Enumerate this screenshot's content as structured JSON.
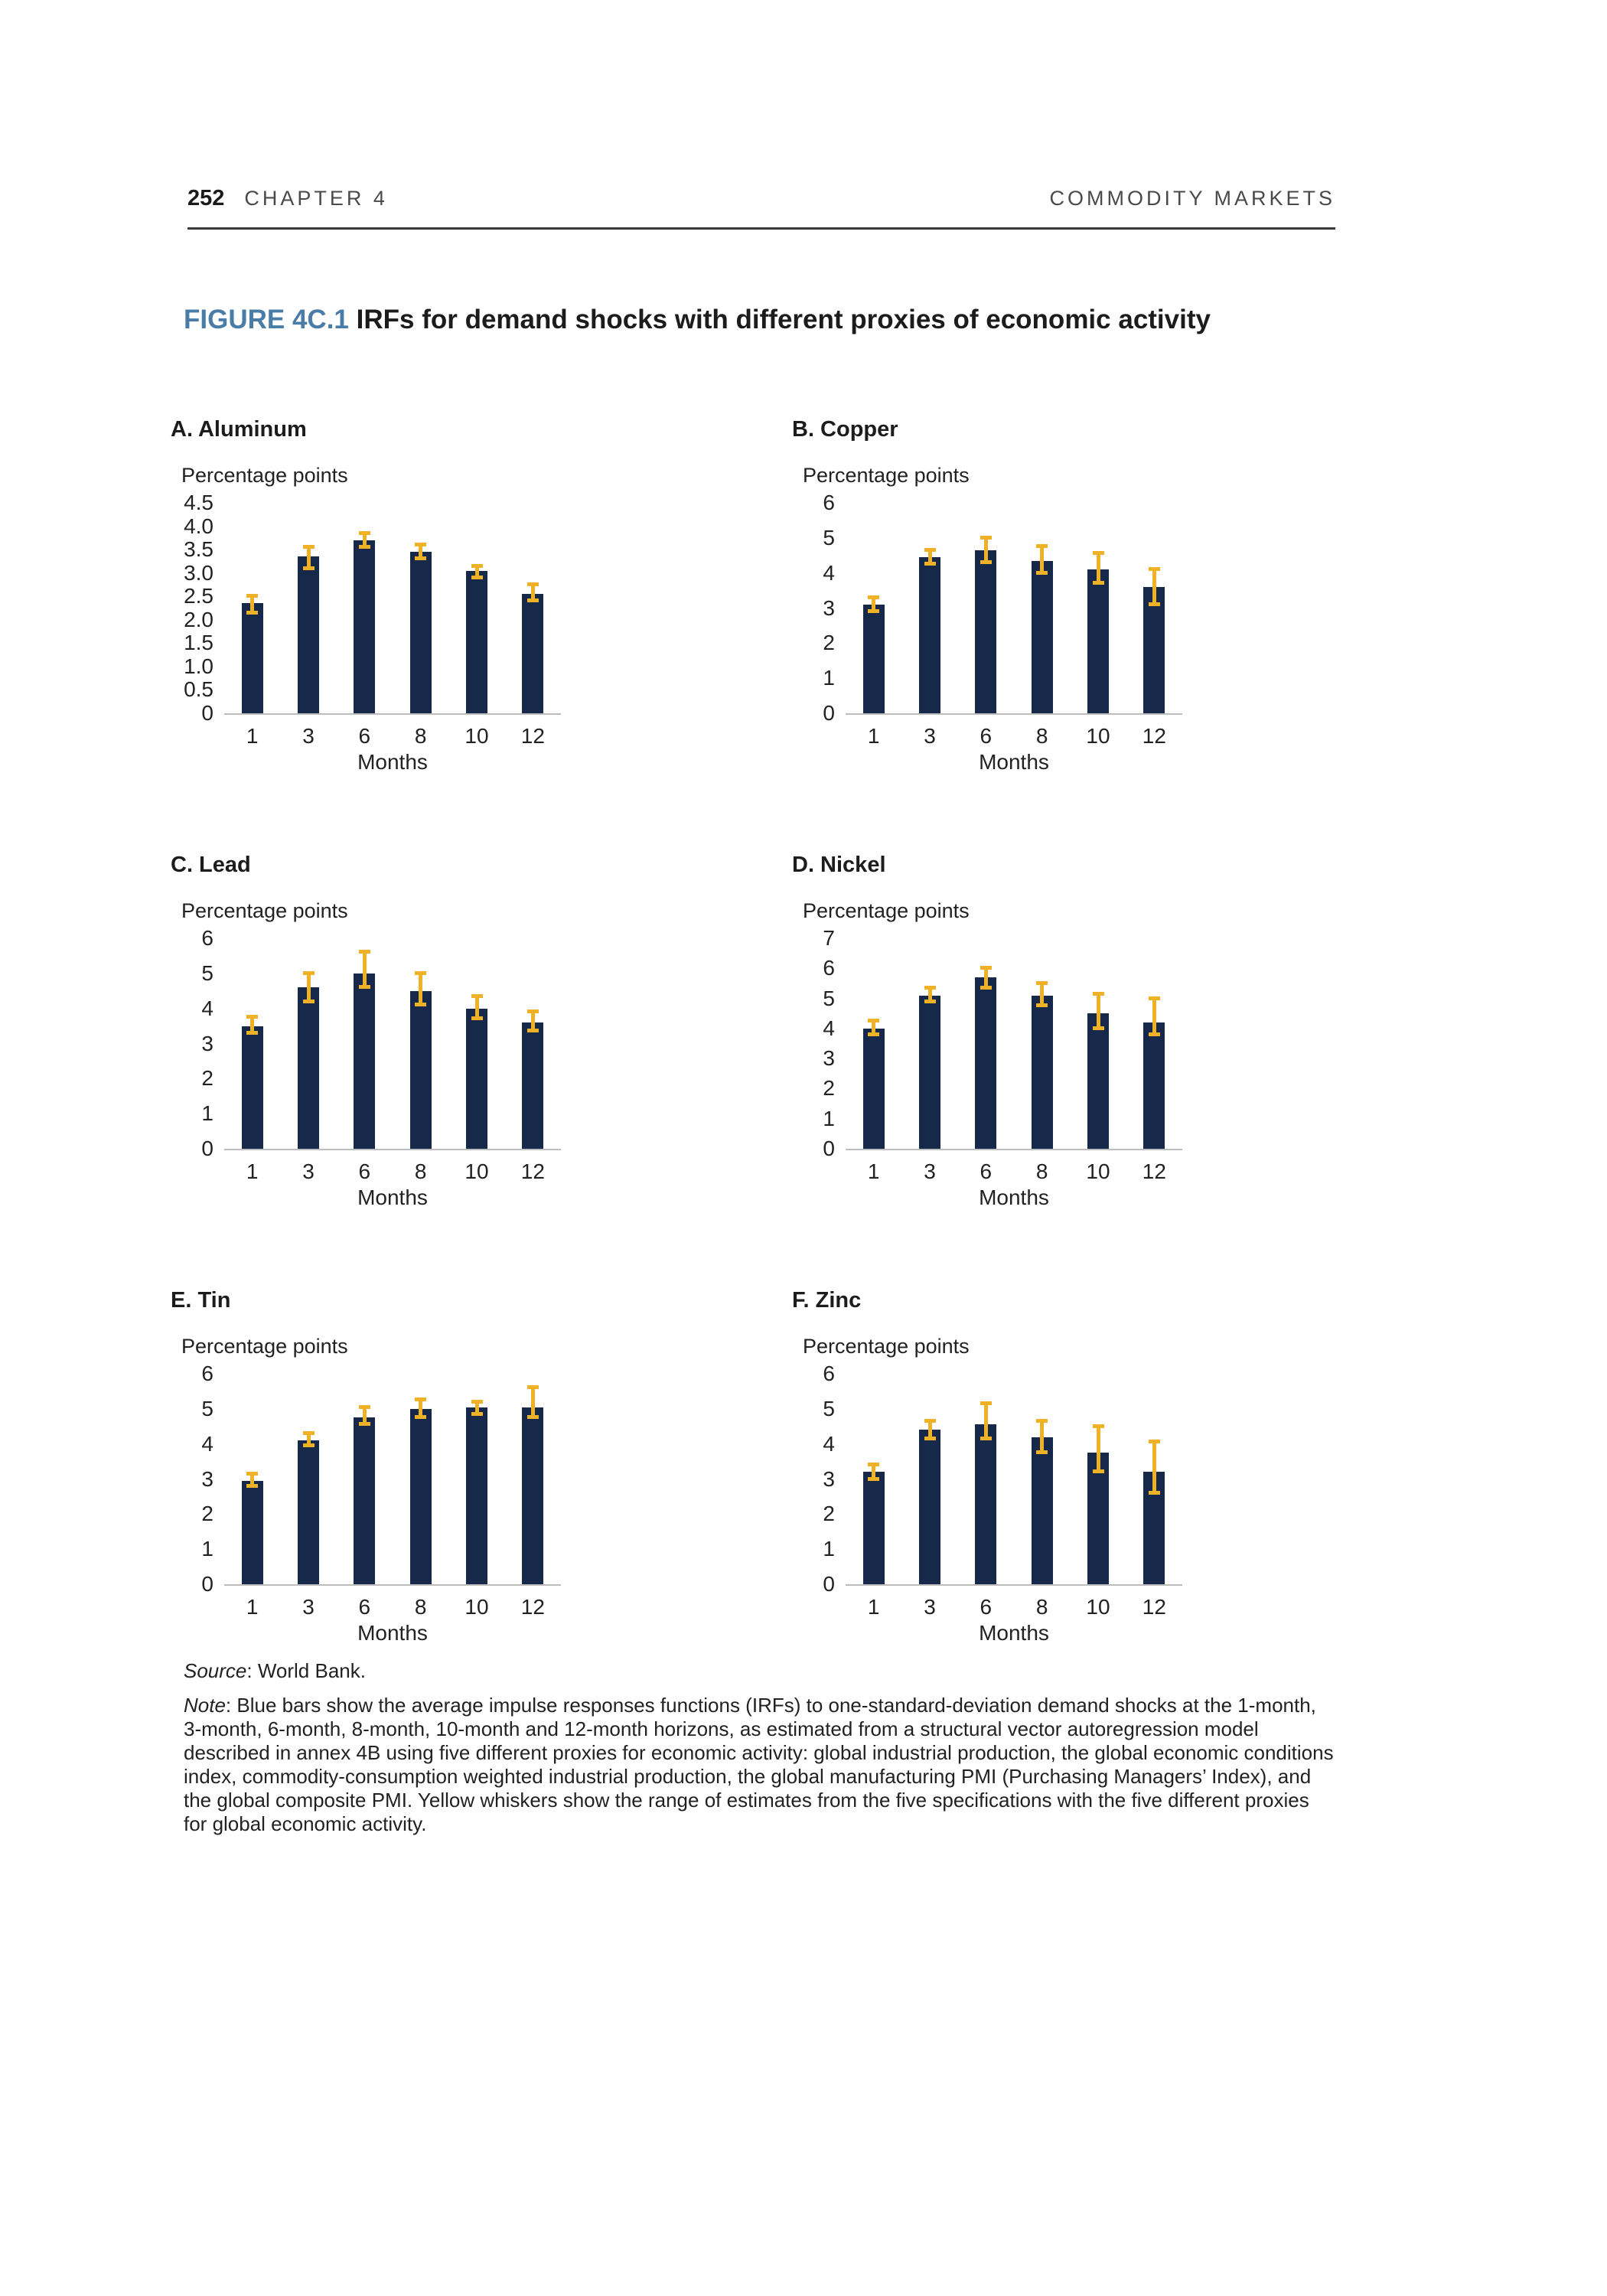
{
  "header": {
    "page_number": "252",
    "chapter": "CHAPTER 4",
    "running_title": "COMMODITY MARKETS"
  },
  "figure": {
    "label": "FIGURE 4C.1",
    "title": "IRFs for demand shocks with different proxies of economic activity"
  },
  "colors": {
    "bar": "#16294a",
    "whisker": "#efb226",
    "accent": "#4a7ca8",
    "axis_line": "#bdbdbd"
  },
  "chart_data": [
    {
      "type": "bar",
      "panel": "A. Aluminum",
      "ylabel": "Percentage points",
      "xlabel": "Months",
      "categories": [
        "1",
        "3",
        "6",
        "8",
        "10",
        "12"
      ],
      "values": [
        2.35,
        3.35,
        3.7,
        3.45,
        3.05,
        2.55
      ],
      "whisker_low": [
        2.15,
        3.1,
        3.55,
        3.3,
        2.9,
        2.4
      ],
      "whisker_high": [
        2.5,
        3.55,
        3.85,
        3.6,
        3.15,
        2.75
      ],
      "ylim": [
        0,
        4.5
      ],
      "yticks": [
        [
          "0",
          0
        ],
        [
          "0.5",
          0.5
        ],
        [
          "1.0",
          1
        ],
        [
          "1.5",
          1.5
        ],
        [
          "2.0",
          2
        ],
        [
          "2.5",
          2.5
        ],
        [
          "3.0",
          3
        ],
        [
          "3.5",
          3.5
        ],
        [
          "4.0",
          4
        ],
        [
          "4.5",
          4.5
        ]
      ],
      "grid": false,
      "legend": "none"
    },
    {
      "type": "bar",
      "panel": "B. Copper",
      "ylabel": "Percentage points",
      "xlabel": "Months",
      "categories": [
        "1",
        "3",
        "6",
        "8",
        "10",
        "12"
      ],
      "values": [
        3.1,
        4.45,
        4.65,
        4.35,
        4.1,
        3.6
      ],
      "whisker_low": [
        2.9,
        4.25,
        4.3,
        4.0,
        3.7,
        3.1
      ],
      "whisker_high": [
        3.3,
        4.65,
        5.0,
        4.75,
        4.55,
        4.1
      ],
      "ylim": [
        0,
        6
      ],
      "yticks": [
        [
          "0",
          0
        ],
        [
          "1",
          1
        ],
        [
          "2",
          2
        ],
        [
          "3",
          3
        ],
        [
          "4",
          4
        ],
        [
          "5",
          5
        ],
        [
          "6",
          6
        ]
      ],
      "grid": false,
      "legend": "none"
    },
    {
      "type": "bar",
      "panel": "C. Lead",
      "ylabel": "Percentage points",
      "xlabel": "Months",
      "categories": [
        "1",
        "3",
        "6",
        "8",
        "10",
        "12"
      ],
      "values": [
        3.5,
        4.6,
        5.0,
        4.5,
        4.0,
        3.6
      ],
      "whisker_low": [
        3.3,
        4.2,
        4.6,
        4.1,
        3.7,
        3.35
      ],
      "whisker_high": [
        3.75,
        5.0,
        5.6,
        5.0,
        4.35,
        3.9
      ],
      "ylim": [
        0,
        6
      ],
      "yticks": [
        [
          "0",
          0
        ],
        [
          "1",
          1
        ],
        [
          "2",
          2
        ],
        [
          "3",
          3
        ],
        [
          "4",
          4
        ],
        [
          "5",
          5
        ],
        [
          "6",
          6
        ]
      ],
      "grid": false,
      "legend": "none"
    },
    {
      "type": "bar",
      "panel": "D. Nickel",
      "ylabel": "Percentage points",
      "xlabel": "Months",
      "categories": [
        "1",
        "3",
        "6",
        "8",
        "10",
        "12"
      ],
      "values": [
        4.0,
        5.1,
        5.7,
        5.1,
        4.5,
        4.2
      ],
      "whisker_low": [
        3.8,
        4.9,
        5.35,
        4.75,
        4.0,
        3.8
      ],
      "whisker_high": [
        4.25,
        5.35,
        6.0,
        5.5,
        5.15,
        5.0
      ],
      "ylim": [
        0,
        7
      ],
      "yticks": [
        [
          "0",
          0
        ],
        [
          "1",
          1
        ],
        [
          "2",
          2
        ],
        [
          "3",
          3
        ],
        [
          "4",
          4
        ],
        [
          "5",
          5
        ],
        [
          "6",
          6
        ],
        [
          "7",
          7
        ]
      ],
      "grid": false,
      "legend": "none"
    },
    {
      "type": "bar",
      "panel": "E. Tin",
      "ylabel": "Percentage points",
      "xlabel": "Months",
      "categories": [
        "1",
        "3",
        "6",
        "8",
        "10",
        "12"
      ],
      "values": [
        2.95,
        4.1,
        4.75,
        5.0,
        5.05,
        5.05
      ],
      "whisker_low": [
        2.8,
        3.95,
        4.55,
        4.75,
        4.85,
        4.75
      ],
      "whisker_high": [
        3.15,
        4.3,
        5.05,
        5.25,
        5.2,
        5.6
      ],
      "ylim": [
        0,
        6
      ],
      "yticks": [
        [
          "0",
          0
        ],
        [
          "1",
          1
        ],
        [
          "2",
          2
        ],
        [
          "3",
          3
        ],
        [
          "4",
          4
        ],
        [
          "5",
          5
        ],
        [
          "6",
          6
        ]
      ],
      "grid": false,
      "legend": "none"
    },
    {
      "type": "bar",
      "panel": "F. Zinc",
      "ylabel": "Percentage points",
      "xlabel": "Months",
      "categories": [
        "1",
        "3",
        "6",
        "8",
        "10",
        "12"
      ],
      "values": [
        3.2,
        4.4,
        4.55,
        4.2,
        3.75,
        3.2
      ],
      "whisker_low": [
        3.0,
        4.15,
        4.15,
        3.75,
        3.2,
        2.6
      ],
      "whisker_high": [
        3.4,
        4.65,
        5.15,
        4.65,
        4.5,
        4.05
      ],
      "ylim": [
        0,
        6
      ],
      "yticks": [
        [
          "0",
          0
        ],
        [
          "1",
          1
        ],
        [
          "2",
          2
        ],
        [
          "3",
          3
        ],
        [
          "4",
          4
        ],
        [
          "5",
          5
        ],
        [
          "6",
          6
        ]
      ],
      "grid": false,
      "legend": "none"
    }
  ],
  "footer": {
    "source_label": "Source",
    "source_rest": ": World Bank.",
    "note_label": "Note",
    "note_rest": ": Blue bars show the average impulse responses functions (IRFs) to one-standard-deviation demand shocks at the 1-month, 3-month, 6-month, 8-month, 10-month and 12-month horizons, as estimated from a structural vector autoregression model described in annex 4B using five different proxies for economic activity: global industrial production, the global economic conditions index, commodity-consumption weighted industrial production, the global manufacturing PMI (Purchasing Managers’ Index), and the global composite PMI. Yellow whiskers show the range of estimates from the five specifications with the five different proxies for global economic activity."
  }
}
